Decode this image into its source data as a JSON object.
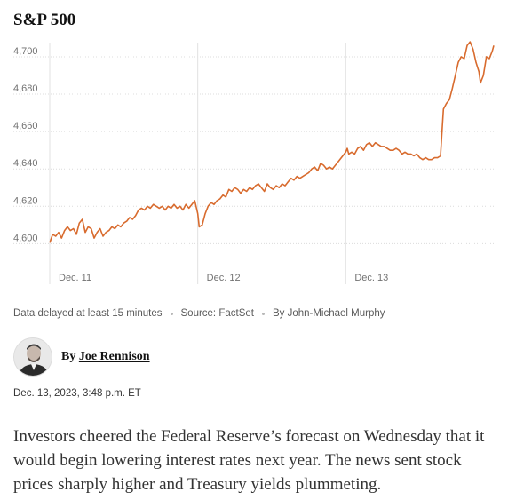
{
  "chart_data": {
    "type": "line",
    "title": "S&P 500",
    "xlabel": "",
    "ylabel": "",
    "ylim": [
      4594,
      4709
    ],
    "yticks": [
      4600,
      4620,
      4640,
      4660,
      4680,
      4700
    ],
    "ytick_labels": [
      "4,600",
      "4,620",
      "4,640",
      "4,660",
      "4,680",
      "4,700"
    ],
    "xlim": [
      0,
      3
    ],
    "xticks": [
      0,
      1,
      2
    ],
    "xtick_labels": [
      "Dec. 11",
      "Dec. 12",
      "Dec. 13"
    ],
    "grid": true,
    "line_color": "#d86b2e",
    "series": [
      {
        "name": "",
        "points": [
          [
            0.0,
            4600.5
          ],
          [
            0.02,
            4605
          ],
          [
            0.04,
            4604
          ],
          [
            0.06,
            4606
          ],
          [
            0.08,
            4603
          ],
          [
            0.1,
            4607
          ],
          [
            0.12,
            4609
          ],
          [
            0.14,
            4607
          ],
          [
            0.16,
            4608
          ],
          [
            0.18,
            4605
          ],
          [
            0.2,
            4611
          ],
          [
            0.22,
            4613
          ],
          [
            0.24,
            4606
          ],
          [
            0.26,
            4609
          ],
          [
            0.28,
            4608
          ],
          [
            0.3,
            4603
          ],
          [
            0.32,
            4606
          ],
          [
            0.34,
            4608
          ],
          [
            0.36,
            4604
          ],
          [
            0.38,
            4606
          ],
          [
            0.4,
            4607
          ],
          [
            0.42,
            4609
          ],
          [
            0.44,
            4608
          ],
          [
            0.46,
            4610
          ],
          [
            0.48,
            4609
          ],
          [
            0.5,
            4611
          ],
          [
            0.52,
            4612
          ],
          [
            0.54,
            4614
          ],
          [
            0.56,
            4613
          ],
          [
            0.58,
            4615
          ],
          [
            0.6,
            4618
          ],
          [
            0.62,
            4619
          ],
          [
            0.64,
            4618
          ],
          [
            0.66,
            4620
          ],
          [
            0.68,
            4619
          ],
          [
            0.7,
            4621
          ],
          [
            0.72,
            4620
          ],
          [
            0.74,
            4619
          ],
          [
            0.76,
            4620
          ],
          [
            0.78,
            4618
          ],
          [
            0.8,
            4620
          ],
          [
            0.82,
            4619
          ],
          [
            0.84,
            4621
          ],
          [
            0.86,
            4619
          ],
          [
            0.88,
            4620
          ],
          [
            0.9,
            4618
          ],
          [
            0.92,
            4621
          ],
          [
            0.94,
            4619
          ],
          [
            0.96,
            4621
          ],
          [
            0.98,
            4623
          ],
          [
            1.0,
            4616
          ],
          [
            1.01,
            4609
          ],
          [
            1.03,
            4610
          ],
          [
            1.05,
            4616
          ],
          [
            1.07,
            4620
          ],
          [
            1.09,
            4622
          ],
          [
            1.11,
            4621
          ],
          [
            1.13,
            4623
          ],
          [
            1.15,
            4624
          ],
          [
            1.17,
            4626
          ],
          [
            1.19,
            4625
          ],
          [
            1.21,
            4629
          ],
          [
            1.23,
            4628
          ],
          [
            1.25,
            4630
          ],
          [
            1.27,
            4629
          ],
          [
            1.29,
            4627
          ],
          [
            1.31,
            4629
          ],
          [
            1.33,
            4628
          ],
          [
            1.35,
            4630
          ],
          [
            1.37,
            4629
          ],
          [
            1.39,
            4631
          ],
          [
            1.41,
            4632
          ],
          [
            1.43,
            4630
          ],
          [
            1.45,
            4628
          ],
          [
            1.47,
            4632
          ],
          [
            1.49,
            4630
          ],
          [
            1.51,
            4629
          ],
          [
            1.53,
            4631
          ],
          [
            1.55,
            4630
          ],
          [
            1.57,
            4632
          ],
          [
            1.59,
            4631
          ],
          [
            1.61,
            4633
          ],
          [
            1.63,
            4635
          ],
          [
            1.65,
            4634
          ],
          [
            1.67,
            4636
          ],
          [
            1.69,
            4635
          ],
          [
            1.71,
            4636
          ],
          [
            1.73,
            4637
          ],
          [
            1.75,
            4638
          ],
          [
            1.77,
            4640
          ],
          [
            1.79,
            4641
          ],
          [
            1.81,
            4639
          ],
          [
            1.83,
            4643
          ],
          [
            1.85,
            4642
          ],
          [
            1.87,
            4640
          ],
          [
            1.89,
            4641
          ],
          [
            1.91,
            4640
          ],
          [
            1.93,
            4642
          ],
          [
            2.0,
            4649
          ],
          [
            2.01,
            4651
          ],
          [
            2.02,
            4648
          ],
          [
            2.04,
            4649
          ],
          [
            2.06,
            4648
          ],
          [
            2.08,
            4651
          ],
          [
            2.1,
            4652
          ],
          [
            2.12,
            4650
          ],
          [
            2.14,
            4653
          ],
          [
            2.16,
            4654
          ],
          [
            2.18,
            4652
          ],
          [
            2.2,
            4654
          ],
          [
            2.22,
            4653
          ],
          [
            2.24,
            4652
          ],
          [
            2.26,
            4652
          ],
          [
            2.28,
            4651
          ],
          [
            2.3,
            4650
          ],
          [
            2.32,
            4650
          ],
          [
            2.34,
            4651
          ],
          [
            2.36,
            4650
          ],
          [
            2.38,
            4648
          ],
          [
            2.4,
            4649
          ],
          [
            2.42,
            4648
          ],
          [
            2.44,
            4648
          ],
          [
            2.46,
            4647
          ],
          [
            2.48,
            4648
          ],
          [
            2.5,
            4646
          ],
          [
            2.52,
            4645
          ],
          [
            2.54,
            4646
          ],
          [
            2.56,
            4645
          ],
          [
            2.58,
            4645
          ],
          [
            2.6,
            4646
          ],
          [
            2.62,
            4646
          ],
          [
            2.64,
            4647
          ],
          [
            2.65,
            4660
          ],
          [
            2.66,
            4672
          ],
          [
            2.68,
            4675
          ],
          [
            2.7,
            4677
          ],
          [
            2.72,
            4683
          ],
          [
            2.74,
            4690
          ],
          [
            2.76,
            4697
          ],
          [
            2.78,
            4700
          ],
          [
            2.8,
            4699
          ],
          [
            2.82,
            4706
          ],
          [
            2.84,
            4708
          ],
          [
            2.86,
            4704
          ],
          [
            2.88,
            4697
          ],
          [
            2.9,
            4692
          ],
          [
            2.91,
            4686
          ],
          [
            2.93,
            4690
          ],
          [
            2.95,
            4700
          ],
          [
            2.97,
            4699
          ],
          [
            2.99,
            4703
          ],
          [
            3.0,
            4706
          ]
        ]
      }
    ]
  },
  "meta": {
    "delay_note": "Data delayed at least 15 minutes",
    "source": "Source: FactSet",
    "credit": "By John-Michael Murphy"
  },
  "byline": {
    "prefix": "By ",
    "author": "Joe Rennison"
  },
  "timestamp": "Dec. 13, 2023, 3:48 p.m. ET",
  "body": "Investors cheered the Federal Reserve’s forecast on Wednesday that it would begin lowering interest rates next year. The news sent stock prices sharply higher and Treasury yields plummeting."
}
